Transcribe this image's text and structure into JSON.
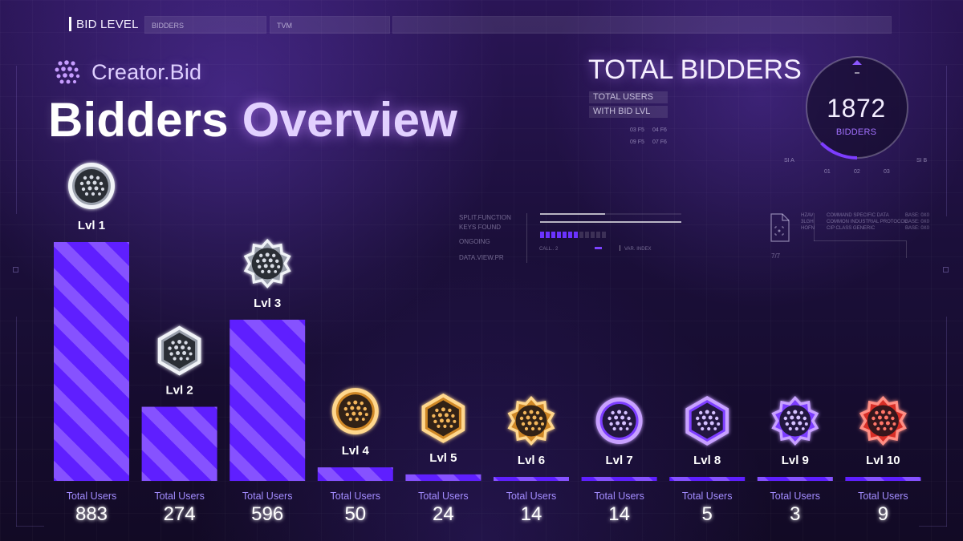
{
  "header": {
    "top_label": "BID LEVEL",
    "segments": [
      "BIDDERS",
      "TVM",
      ""
    ]
  },
  "brand": {
    "name": "Creator.Bid"
  },
  "page": {
    "title_first": "Bidders",
    "title_second": "Overview"
  },
  "summary": {
    "title": "TOTAL BIDDERS",
    "tags": [
      "TOTAL USERS",
      "WITH BID LVL"
    ],
    "codes": [
      "03 F5",
      "04 F6",
      "09 F5",
      "07 F6"
    ],
    "counter_value": "1872",
    "counter_label": "BIDDERS",
    "counter_marks": [
      "01",
      "02",
      "03"
    ],
    "side_marks": [
      "SI A",
      "SI B"
    ],
    "counter_progress": 0.25
  },
  "status_panel": {
    "labels": [
      "SPLIT.FUNCTION",
      "KEYS FOUND",
      "ONGOING",
      "DATA.VIEW.PR"
    ],
    "meta_left": "CALL.. 2",
    "meta_right": "VAR. INDEX",
    "progress_values": [
      0.46,
      1.0
    ],
    "blocks_total": 12,
    "blocks_active": 7
  },
  "aux_panel": {
    "page_indicator": "7/7",
    "rows": [
      {
        "code": "HZAV",
        "description": "COMMAND SPECIFIC DATA",
        "base": "BASE: 0x0"
      },
      {
        "code": "3LGH",
        "description": "COMMON INDUSTRIAL PROTOCOL",
        "base": "BASE: 0x0"
      },
      {
        "code": "HOFN",
        "description": "CIP CLASS GENERIC",
        "base": "BASE: 0x0"
      }
    ]
  },
  "colors": {
    "bar_primary": "#5f1fff",
    "bar_stripe": "#8d5bff",
    "badge_silver": "#cfd3dd",
    "badge_gold": "#f0b654",
    "badge_purple": "#9a5cff",
    "badge_red": "#f0463f"
  },
  "chart_data": {
    "type": "bar",
    "title": "Bidders Overview",
    "categories": [
      "Lvl 1",
      "Lvl 2",
      "Lvl 3",
      "Lvl 4",
      "Lvl 5",
      "Lvl 6",
      "Lvl 7",
      "Lvl 8",
      "Lvl 9",
      "Lvl 10"
    ],
    "values": [
      883,
      274,
      596,
      50,
      24,
      14,
      14,
      5,
      3,
      9
    ],
    "value_label": "Total Users",
    "badge_variants": [
      "silver-circle",
      "silver-hex",
      "silver-star",
      "gold-circle",
      "gold-hex",
      "gold-star",
      "purple-circle",
      "purple-hex",
      "purple-star",
      "red-star"
    ],
    "ylim": [
      0,
      883
    ],
    "grid": false,
    "legend": "none"
  }
}
